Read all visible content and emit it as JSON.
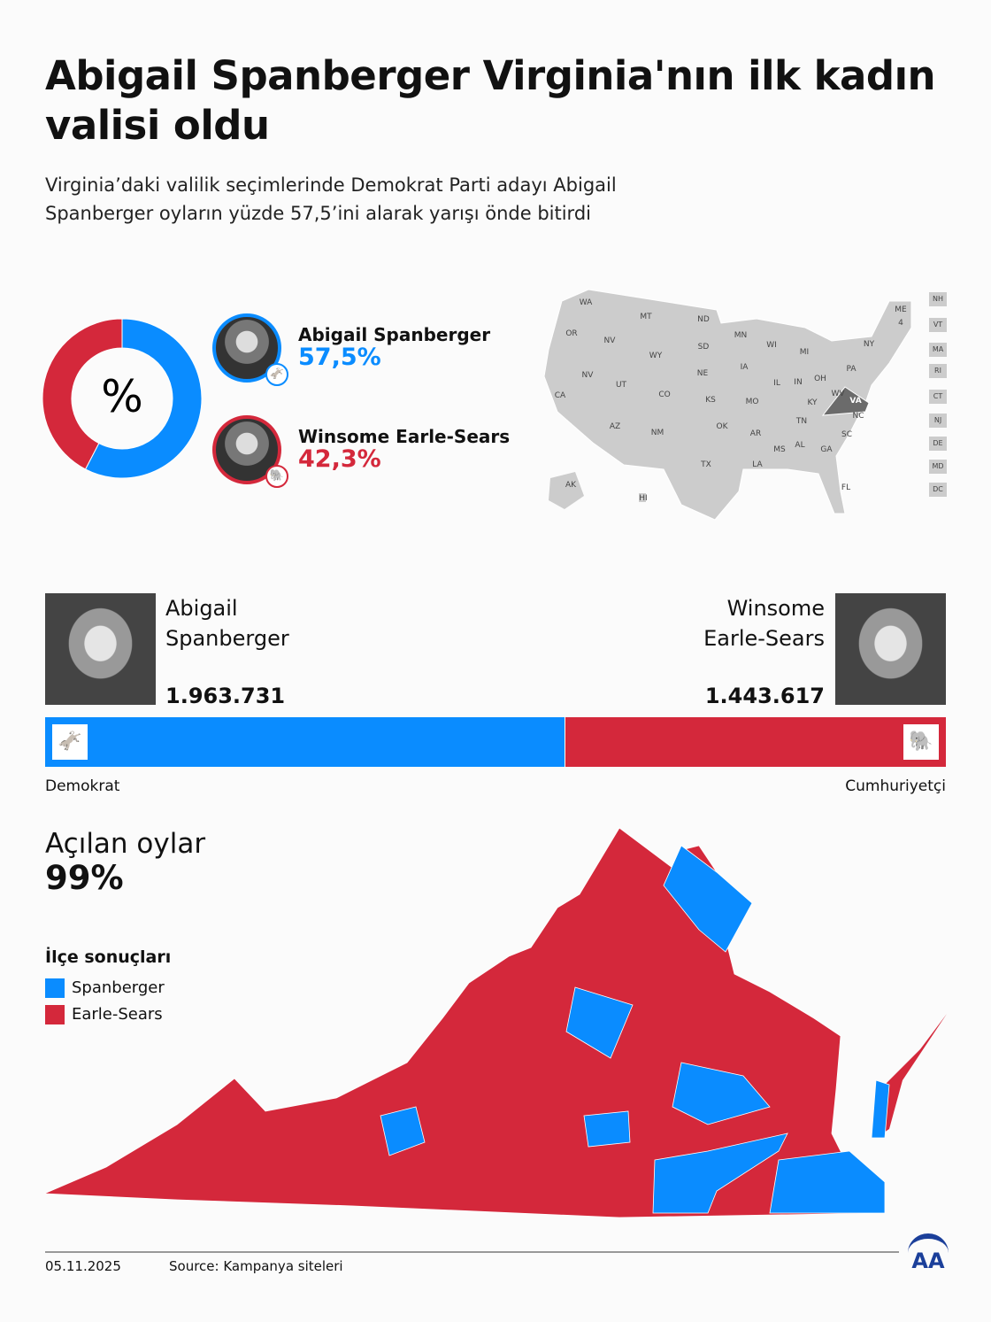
{
  "title": "Abigail Spanberger Virginia'nın ilk kadın valisi oldu",
  "subtitle": "Virginia’daki valilik seçimlerinde Demokrat Parti adayı Abigail Spanberger oyların yüzde 57,5’ini alarak yarışı önde bitirdi",
  "colors": {
    "democrat": "#0a8cff",
    "republican": "#d4283b",
    "map_gray": "#cccccc",
    "virginia_highlight": "#6b6b6b"
  },
  "chart_data": [
    {
      "type": "pie",
      "variant": "donut",
      "center_label": "%",
      "categories": [
        "Abigail Spanberger",
        "Winsome Earle-Sears"
      ],
      "values": [
        57.5,
        42.3
      ],
      "labels": [
        "57,5%",
        "42,3%"
      ]
    },
    {
      "type": "bar",
      "variant": "stacked-horizontal",
      "categories": [
        "Abigail Spanberger",
        "Winsome Earle-Sears"
      ],
      "values": [
        1963731,
        1443617
      ],
      "labels": [
        "1.963.731",
        "1.443.617"
      ],
      "party_labels": [
        "Demokrat",
        "Cumhuriyetçi"
      ]
    }
  ],
  "candidates": [
    {
      "name": "Abigail Spanberger",
      "name_line1": "Abigail",
      "name_line2": "Spanberger",
      "pct": "57,5%",
      "votes": "1.963.731",
      "party": "Demokrat",
      "icon": "donkey-icon"
    },
    {
      "name": "Winsome Earle-Sears",
      "name_line1": "Winsome",
      "name_line2": "Earle-Sears",
      "pct": "42,3%",
      "votes": "1.443.617",
      "party": "Cumhuriyetçi",
      "icon": "elephant-icon"
    }
  ],
  "us_map": {
    "states": [
      "WA",
      "MT",
      "ND",
      "MN",
      "OR",
      "NV",
      "WI",
      "MI",
      "NY",
      "ME",
      "4",
      "SD",
      "WY",
      "NE",
      "IA",
      "PA",
      "NV",
      "UT",
      "CO",
      "KS",
      "IL",
      "IN",
      "OH",
      "MO",
      "KY",
      "WV",
      "VA",
      "CA",
      "TN",
      "NC",
      "AZ",
      "NM",
      "OK",
      "AR",
      "SC",
      "MS",
      "AL",
      "GA",
      "TX",
      "LA",
      "FL",
      "AK",
      "HI"
    ],
    "small_states": [
      "NH",
      "VT",
      "MA",
      "RI",
      "CT",
      "NJ",
      "DE",
      "MD",
      "DC"
    ],
    "highlighted": "VA"
  },
  "counted": {
    "label": "Açılan oylar",
    "value": "99%"
  },
  "legend": {
    "title": "İlçe sonuçları",
    "items": [
      "Spanberger",
      "Earle-Sears"
    ]
  },
  "footer": {
    "date": "05.11.2025",
    "source": "Source: Kampanya siteleri",
    "logo": "AA"
  }
}
